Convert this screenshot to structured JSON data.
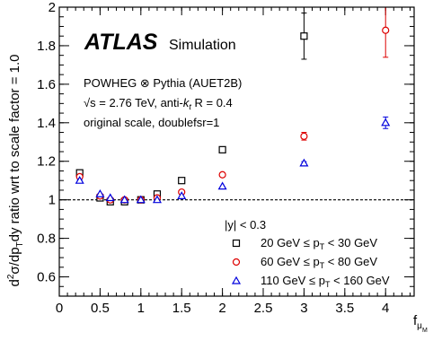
{
  "chart_data": {
    "type": "scatter",
    "xlim": [
      0,
      4.35
    ],
    "ylim": [
      0.5,
      2.0
    ],
    "x_ticks": [
      {
        "v": 0,
        "label": "0"
      },
      {
        "v": 0.5,
        "label": "0.5"
      },
      {
        "v": 1,
        "label": "1"
      },
      {
        "v": 1.5,
        "label": "1.5"
      },
      {
        "v": 2,
        "label": "2"
      },
      {
        "v": 2.5,
        "label": "2.5"
      },
      {
        "v": 3,
        "label": "3"
      },
      {
        "v": 3.5,
        "label": "3.5"
      },
      {
        "v": 4,
        "label": "4"
      }
    ],
    "y_ticks": [
      {
        "v": 0.6,
        "label": "0.6"
      },
      {
        "v": 0.8,
        "label": "0.8"
      },
      {
        "v": 1.0,
        "label": "1"
      },
      {
        "v": 1.2,
        "label": "1.2"
      },
      {
        "v": 1.4,
        "label": "1.4"
      },
      {
        "v": 1.6,
        "label": "1.6"
      },
      {
        "v": 1.8,
        "label": "1.8"
      },
      {
        "v": 2.0,
        "label": "2"
      }
    ],
    "x_minor_step": 0.1,
    "y_minor_step": 0.05,
    "reference_line": 1.0,
    "xlabel": {
      "base": "f",
      "sub": "μ",
      "subsub": "M"
    },
    "ylabel": {
      "pre": "d",
      "sup": "2",
      "mid": "σ/dp",
      "sub": "T",
      "post": "dy ratio wrt to scale factor = 1.0"
    },
    "atlas_label": "ATLAS",
    "atlas_sub": "Simulation",
    "info_lines": {
      "line1": "POWHEG ⊗ Pythia (AUET2B)",
      "line2_root": "√s",
      "line2_a": " = 2.76 TeV, anti-",
      "line2_k": "k",
      "line2_ksub": "t",
      "line2_b": " R = 0.4",
      "line3": "original scale, doublefsr=1"
    },
    "legend_header": "|y| < 0.3",
    "series": [
      {
        "name": "20 GeV ≤ p",
        "name_sub": "T",
        "name_post": " < 30 GeV",
        "marker": "square",
        "color": "#000000",
        "points": [
          {
            "x": 0.25,
            "y": 1.14,
            "err": 0.01
          },
          {
            "x": 0.5,
            "y": 1.01,
            "err": 0.005
          },
          {
            "x": 0.625,
            "y": 0.99,
            "err": 0.005
          },
          {
            "x": 0.8,
            "y": 0.99,
            "err": 0.005
          },
          {
            "x": 1.0,
            "y": 1.0,
            "err": 0.003
          },
          {
            "x": 1.2,
            "y": 1.03,
            "err": 0.005
          },
          {
            "x": 1.5,
            "y": 1.1,
            "err": 0.006
          },
          {
            "x": 2.0,
            "y": 1.26,
            "err": 0.007
          },
          {
            "x": 3.0,
            "y": 1.85,
            "err": 0.12
          }
        ]
      },
      {
        "name": "60 GeV ≤ p",
        "name_sub": "T",
        "name_post": " < 80 GeV",
        "marker": "circle",
        "color": "#dd0000",
        "points": [
          {
            "x": 0.25,
            "y": 1.12,
            "err": 0.006
          },
          {
            "x": 0.5,
            "y": 1.02,
            "err": 0.004
          },
          {
            "x": 0.625,
            "y": 1.0,
            "err": 0.003
          },
          {
            "x": 0.8,
            "y": 1.0,
            "err": 0.003
          },
          {
            "x": 1.0,
            "y": 1.0,
            "err": 0.002
          },
          {
            "x": 1.2,
            "y": 1.01,
            "err": 0.003
          },
          {
            "x": 1.5,
            "y": 1.04,
            "err": 0.004
          },
          {
            "x": 2.0,
            "y": 1.13,
            "err": 0.005
          },
          {
            "x": 3.0,
            "y": 1.33,
            "err": 0.02
          },
          {
            "x": 4.0,
            "y": 1.88,
            "err": 0.14
          }
        ]
      },
      {
        "name": "110 GeV ≤ p",
        "name_sub": "T",
        "name_post": " < 160 GeV",
        "marker": "triangle",
        "color": "#0000dd",
        "points": [
          {
            "x": 0.25,
            "y": 1.1,
            "err": 0.005
          },
          {
            "x": 0.5,
            "y": 1.03,
            "err": 0.003
          },
          {
            "x": 0.625,
            "y": 1.01,
            "err": 0.002
          },
          {
            "x": 0.8,
            "y": 1.0,
            "err": 0.002
          },
          {
            "x": 1.0,
            "y": 1.0,
            "err": 0.002
          },
          {
            "x": 1.2,
            "y": 1.0,
            "err": 0.002
          },
          {
            "x": 1.5,
            "y": 1.02,
            "err": 0.003
          },
          {
            "x": 2.0,
            "y": 1.07,
            "err": 0.004
          },
          {
            "x": 3.0,
            "y": 1.19,
            "err": 0.008
          },
          {
            "x": 4.0,
            "y": 1.4,
            "err": 0.03
          }
        ]
      }
    ]
  }
}
